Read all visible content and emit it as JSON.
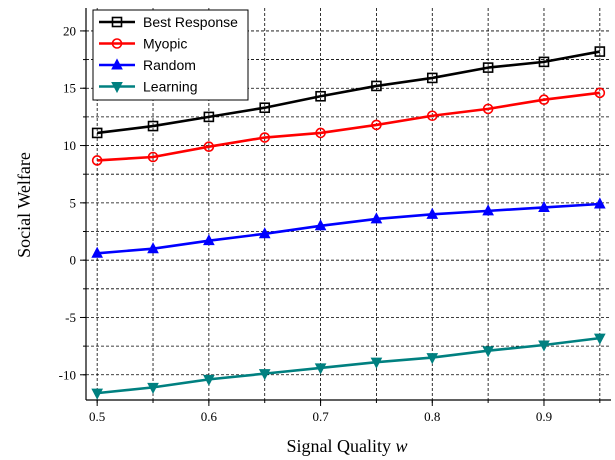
{
  "chart_data": {
    "type": "line",
    "title": "",
    "xlabel": "Signal Quality ",
    "xlabel_var": "w",
    "ylabel": "Social Welfare",
    "x": [
      0.5,
      0.55,
      0.6,
      0.65,
      0.7,
      0.75,
      0.8,
      0.85,
      0.9,
      0.95
    ],
    "xlim": [
      0.49,
      0.96
    ],
    "ylim": [
      -12.2,
      22
    ],
    "xticks": [
      0.5,
      0.6,
      0.7,
      0.8,
      0.9
    ],
    "xtick_labels": [
      "0.5",
      "0.6",
      "0.7",
      "0.8",
      "0.9"
    ],
    "yticks": [
      -10,
      -5,
      0,
      5,
      10,
      15,
      20
    ],
    "ytick_labels": [
      "-10",
      "-5",
      "0",
      "5",
      "10",
      "15",
      "20"
    ],
    "grid": true,
    "legend_position": "top-left",
    "series": [
      {
        "name": "Best Response",
        "color": "#000000",
        "marker": "square",
        "values": [
          11.1,
          11.7,
          12.5,
          13.3,
          14.3,
          15.2,
          15.9,
          16.8,
          17.3,
          18.2
        ]
      },
      {
        "name": "Myopic",
        "color": "#ff0000",
        "marker": "circle",
        "values": [
          8.7,
          9.0,
          9.9,
          10.7,
          11.1,
          11.8,
          12.6,
          13.2,
          14.0,
          14.6
        ]
      },
      {
        "name": "Random",
        "color": "#0000ff",
        "marker": "triangle-up",
        "values": [
          0.6,
          1.0,
          1.7,
          2.3,
          3.0,
          3.6,
          4.0,
          4.3,
          4.6,
          4.9
        ]
      },
      {
        "name": "Learning",
        "color": "#008080",
        "marker": "triangle-down",
        "values": [
          -11.6,
          -11.1,
          -10.4,
          -9.9,
          -9.4,
          -8.9,
          -8.5,
          -7.9,
          -7.4,
          -6.8
        ]
      }
    ]
  }
}
